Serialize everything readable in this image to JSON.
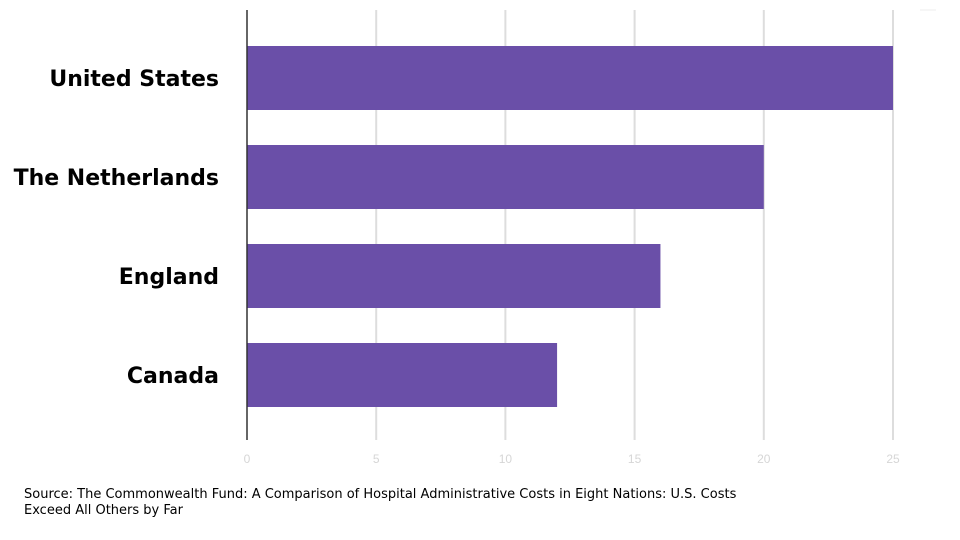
{
  "chart_data": {
    "type": "bar",
    "orientation": "horizontal",
    "title": "",
    "xlabel": "",
    "ylabel": "",
    "categories": [
      "United States",
      "The Netherlands",
      "England",
      "Canada"
    ],
    "values": [
      25,
      20,
      16,
      12
    ],
    "xlim": [
      0,
      26
    ],
    "x_ticks": [
      "0",
      "5",
      "10",
      "15",
      "20",
      "25"
    ],
    "bar_color": "#6a4fa8",
    "grid": "vertical",
    "legend": "none"
  },
  "footer": {
    "source": "Source: The Commonwealth Fund: A Comparison of Hospital Administrative Costs in Eight Nations: U.S. Costs Exceed All Others by Far"
  }
}
